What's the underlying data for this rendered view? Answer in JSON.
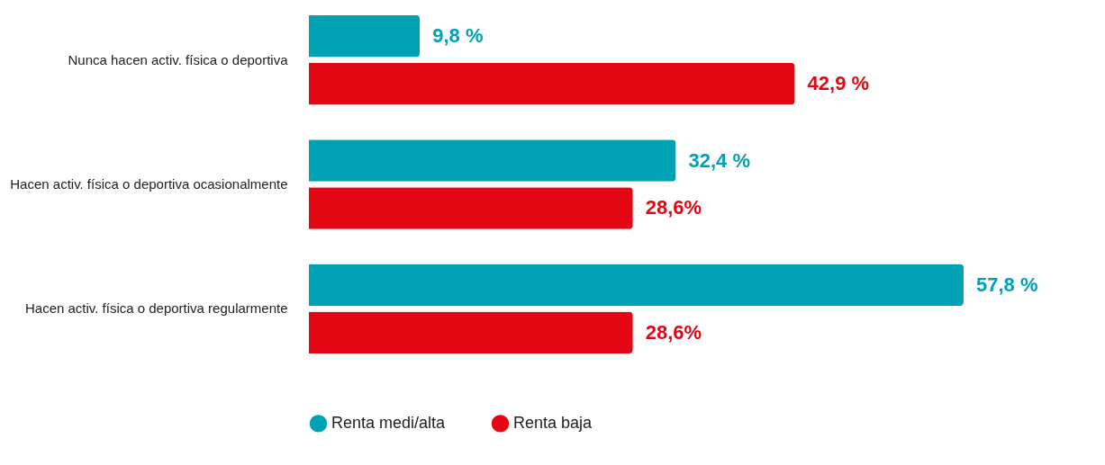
{
  "chart_data": {
    "type": "bar",
    "orientation": "horizontal",
    "categories": [
      "Nunca hacen activ. física o deportiva",
      "Hacen activ. física o deportiva ocasionalmente",
      "Hacen activ. física o deportiva regularmente"
    ],
    "series": [
      {
        "name": "Renta medi/alta",
        "color": "#00a0b5",
        "values": [
          9.8,
          32.4,
          57.8
        ],
        "value_labels": [
          "9,8 %",
          "32,4 %",
          "57,8 %"
        ]
      },
      {
        "name": "Renta baja",
        "color": "#e30613",
        "values": [
          42.9,
          28.6,
          28.6
        ],
        "value_labels": [
          "42,9 %",
          "28,6%",
          "28,6%"
        ]
      }
    ],
    "legend": "bottom"
  }
}
